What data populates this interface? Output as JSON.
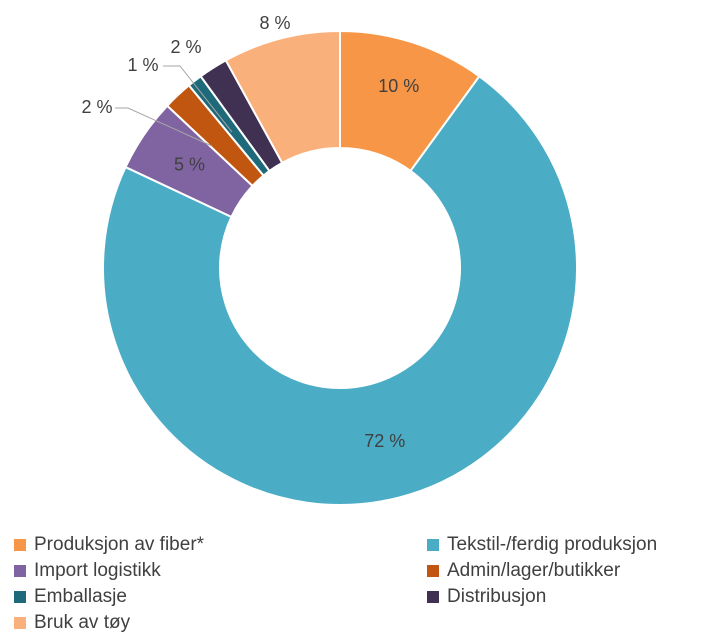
{
  "chart_data": {
    "type": "pie",
    "variant": "donut",
    "title": "",
    "labels": [
      "Produksjon av fiber*",
      "Tekstil-/ferdig produksjon",
      "Import logistikk",
      "Admin/lager/butikker",
      "Emballasje",
      "Distribusjon",
      "Bruk av tøy"
    ],
    "values": [
      10,
      72,
      5,
      2,
      1,
      2,
      8
    ],
    "data_labels": [
      "10 %",
      "72 %",
      "5 %",
      "2 %",
      "1 %",
      "2 %",
      "8 %"
    ],
    "colors": [
      "#F79646",
      "#4BACC6",
      "#8064A2",
      "#C0560F",
      "#1F6A7A",
      "#403152",
      "#FAB07A"
    ],
    "legend_position": "bottom"
  }
}
